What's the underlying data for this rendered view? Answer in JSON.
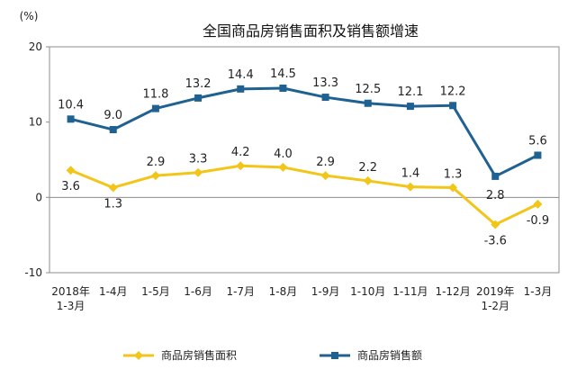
{
  "chart_data": {
    "type": "line",
    "title": "全国商品房销售面积及销售额增速",
    "ylabel": "(%)",
    "xlabel": "",
    "ylim": [
      -10,
      20
    ],
    "yticks": [
      "20",
      "10",
      "0",
      "-10"
    ],
    "categories": [
      [
        "2018年",
        "1-3月"
      ],
      [
        "1-4月"
      ],
      [
        "1-5月"
      ],
      [
        "1-6月"
      ],
      [
        "1-7月"
      ],
      [
        "1-8月"
      ],
      [
        "1-9月"
      ],
      [
        "1-10月"
      ],
      [
        "1-11月"
      ],
      [
        "1-12月"
      ],
      [
        "2019年",
        "1-2月"
      ],
      [
        "1-3月"
      ]
    ],
    "series": [
      {
        "name": "商品房销售面积",
        "color": "#F2C519",
        "marker": "diamond",
        "values": [
          3.6,
          1.3,
          2.9,
          3.3,
          4.2,
          4.0,
          2.9,
          2.2,
          1.4,
          1.3,
          -3.6,
          -0.9
        ],
        "labels": [
          "3.6",
          "1.3",
          "2.9",
          "3.3",
          "4.2",
          "4.0",
          "2.9",
          "2.2",
          "1.4",
          "1.3",
          "-3.6",
          "-0.9"
        ]
      },
      {
        "name": "商品房销售额",
        "color": "#1F6191",
        "marker": "square",
        "values": [
          10.4,
          9.0,
          11.8,
          13.2,
          14.4,
          14.5,
          13.3,
          12.5,
          12.1,
          12.2,
          2.8,
          5.6
        ],
        "labels": [
          "10.4",
          "9.0",
          "11.8",
          "13.2",
          "14.4",
          "14.5",
          "13.3",
          "12.5",
          "12.1",
          "12.2",
          "2.8",
          "5.6"
        ]
      }
    ],
    "grid": false,
    "legend": "bottom"
  }
}
